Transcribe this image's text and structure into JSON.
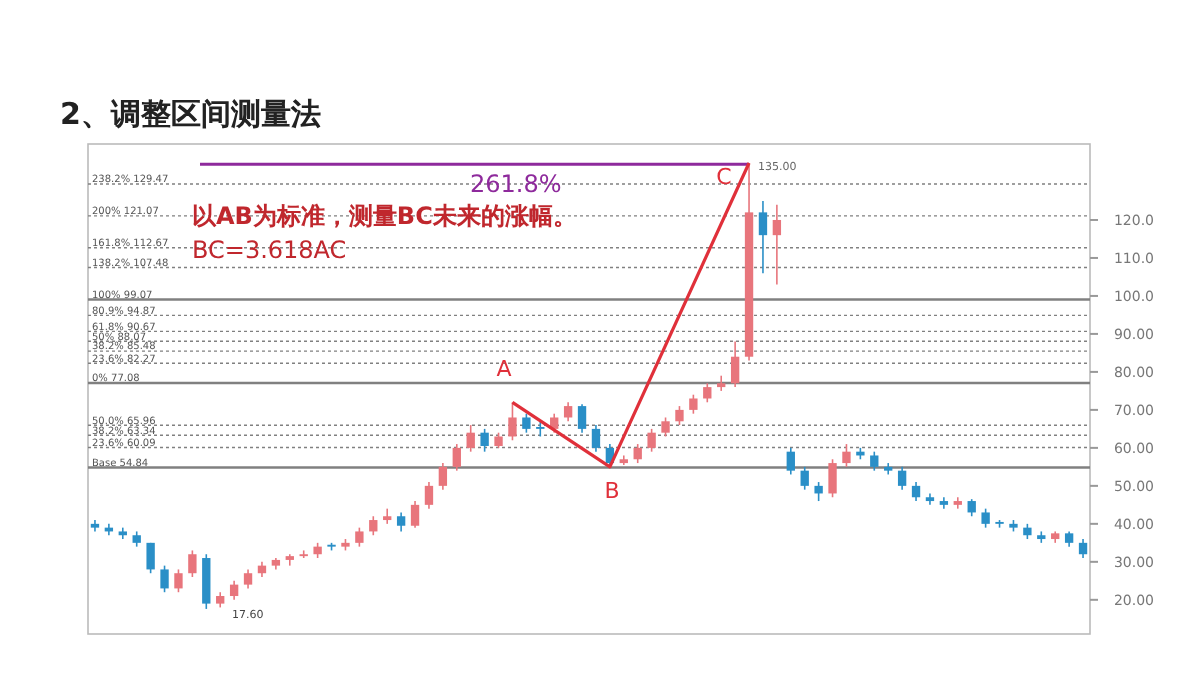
{
  "chart_data": {
    "type": "candlestick",
    "title": "2、调整区间测量法",
    "categories": [
      null,
      null,
      null,
      null,
      null,
      null,
      null,
      null,
      null,
      null,
      null,
      null,
      null,
      null,
      null,
      null,
      null,
      null,
      null,
      null,
      null,
      null,
      null,
      null,
      null,
      null,
      null,
      null,
      null,
      null,
      null,
      null,
      null,
      null,
      null,
      null,
      null,
      null,
      null,
      null,
      null,
      null,
      null,
      null,
      null,
      null,
      null,
      null,
      null,
      null,
      null,
      null,
      null,
      null,
      null,
      null,
      null,
      null,
      null,
      null,
      null,
      null,
      null,
      null,
      null,
      null,
      null,
      null,
      null,
      null,
      null,
      null
    ],
    "ohlc": [
      [
        40,
        41,
        38,
        39
      ],
      [
        39,
        40,
        37,
        38
      ],
      [
        38,
        39,
        36,
        37
      ],
      [
        37,
        38,
        34,
        35
      ],
      [
        35,
        35,
        27,
        28
      ],
      [
        28,
        29,
        22,
        23
      ],
      [
        23,
        28,
        22,
        27
      ],
      [
        27,
        33,
        26,
        32
      ],
      [
        31,
        32,
        17.6,
        19
      ],
      [
        19,
        22,
        18,
        21
      ],
      [
        21,
        25,
        20,
        24
      ],
      [
        24,
        28,
        23,
        27
      ],
      [
        27,
        30,
        26,
        29
      ],
      [
        29,
        31,
        28,
        30.5
      ],
      [
        30.5,
        32,
        29,
        31.5
      ],
      [
        31.5,
        33,
        31,
        32
      ],
      [
        32,
        35,
        31,
        34
      ],
      [
        34.5,
        35,
        33,
        34
      ],
      [
        34,
        36,
        33,
        35
      ],
      [
        35,
        39,
        34,
        38
      ],
      [
        38,
        42,
        37,
        41
      ],
      [
        41,
        44,
        40,
        42
      ],
      [
        42,
        43,
        38,
        39.5
      ],
      [
        39.5,
        46,
        39,
        45
      ],
      [
        45,
        51,
        44,
        50
      ],
      [
        50,
        56,
        49,
        55
      ],
      [
        55,
        61,
        54,
        60
      ],
      [
        60,
        66,
        59,
        64
      ],
      [
        64,
        65,
        59,
        60.5
      ],
      [
        60.5,
        64,
        60,
        63
      ],
      [
        63,
        72,
        62,
        68
      ],
      [
        68,
        69,
        64,
        65
      ],
      [
        65.5,
        67,
        63,
        65
      ],
      [
        65,
        69,
        64,
        68
      ],
      [
        68,
        72,
        67,
        71
      ],
      [
        71,
        71.5,
        64,
        65
      ],
      [
        65,
        66,
        59,
        60
      ],
      [
        60,
        61,
        55,
        56
      ],
      [
        56,
        58,
        55.5,
        57
      ],
      [
        57,
        61,
        56,
        60
      ],
      [
        60,
        65,
        59,
        64
      ],
      [
        64,
        68,
        63,
        67
      ],
      [
        67,
        71,
        66,
        70
      ],
      [
        70,
        74,
        69,
        73
      ],
      [
        73,
        77,
        72,
        76
      ],
      [
        76,
        79,
        75,
        77
      ],
      [
        77,
        88,
        76,
        84
      ],
      [
        84,
        135,
        83,
        122
      ],
      [
        122,
        125,
        106,
        116
      ],
      [
        116,
        124,
        103,
        120
      ],
      [
        59,
        60,
        53,
        54
      ],
      [
        54,
        55,
        49,
        50
      ],
      [
        50,
        51,
        46,
        48
      ],
      [
        48,
        57,
        47,
        56
      ],
      [
        56,
        61,
        55,
        59
      ],
      [
        59,
        60,
        57,
        58
      ],
      [
        58,
        59,
        54,
        55
      ],
      [
        55,
        56,
        53,
        54
      ],
      [
        54,
        55,
        49,
        50
      ],
      [
        50,
        51,
        46,
        47
      ],
      [
        47,
        48,
        45,
        46
      ],
      [
        46,
        47,
        44,
        45
      ],
      [
        45,
        47,
        44,
        46
      ],
      [
        46,
        46.5,
        42,
        43
      ],
      [
        43,
        44,
        39,
        40
      ],
      [
        40.5,
        41,
        39,
        40
      ],
      [
        40,
        41,
        38,
        39
      ],
      [
        39,
        40,
        36,
        37
      ],
      [
        37,
        38,
        35,
        36
      ],
      [
        36,
        38,
        35,
        37.5
      ],
      [
        37.5,
        38,
        34,
        35
      ],
      [
        35,
        36,
        31,
        32
      ]
    ],
    "series": [
      {
        "type": "line",
        "color": "#e0303a",
        "values": [
          null,
          null,
          null,
          null,
          null,
          null,
          null,
          null,
          null,
          null,
          null,
          null,
          null,
          null,
          null,
          null,
          null,
          null,
          null,
          null,
          null,
          null,
          null,
          null,
          null,
          null,
          null,
          null,
          null,
          null,
          72,
          null,
          null,
          null,
          null,
          null,
          null,
          55,
          null,
          null,
          null,
          null,
          null,
          null,
          null,
          null,
          null,
          135,
          null,
          null,
          null,
          null,
          null,
          null,
          null,
          null,
          null,
          null,
          null,
          null,
          null,
          null,
          null,
          null,
          null,
          null,
          null,
          null,
          null,
          null,
          null,
          null
        ]
      }
    ],
    "ylim": [
      11,
      140
    ],
    "yticks": [
      {
        "value": 20,
        "label": "20.00"
      },
      {
        "value": 30,
        "label": "30.00"
      },
      {
        "value": 40,
        "label": "40.00"
      },
      {
        "value": 50,
        "label": "50.00"
      },
      {
        "value": 60,
        "label": "60.00"
      },
      {
        "value": 70,
        "label": "70.00"
      },
      {
        "value": 80,
        "label": "80.00"
      },
      {
        "value": 90,
        "label": "90.00"
      },
      {
        "value": 100,
        "label": "100.0"
      },
      {
        "value": 110,
        "label": "110.0"
      },
      {
        "value": 120,
        "label": "120.0"
      }
    ],
    "ref_lines": [
      {
        "axis": "y",
        "value": 134.65,
        "color": "#8e2a9c",
        "line_style": "solid"
      },
      {
        "axis": "y",
        "value": 129.47,
        "label": "238.2% 129.47",
        "color": "#808080",
        "line_style": "dotted"
      },
      {
        "axis": "y",
        "value": 121.07,
        "label": "200% 121.07",
        "color": "#808080",
        "line_style": "dotted"
      },
      {
        "axis": "y",
        "value": 112.67,
        "label": "161.8% 112.67",
        "color": "#808080",
        "line_style": "dotted"
      },
      {
        "axis": "y",
        "value": 107.48,
        "label": "138.2% 107.48",
        "color": "#808080",
        "line_style": "dotted"
      },
      {
        "axis": "y",
        "value": 99.07,
        "label": "100% 99.07",
        "color": "#808080",
        "line_style": "solid"
      },
      {
        "axis": "y",
        "value": 94.87,
        "label": "80.9% 94.87",
        "color": "#808080",
        "line_style": "dotted"
      },
      {
        "axis": "y",
        "value": 90.67,
        "label": "61.8% 90.67",
        "color": "#808080",
        "line_style": "dotted"
      },
      {
        "axis": "y",
        "value": 88.07,
        "label": "50% 88.07",
        "color": "#808080",
        "line_style": "dotted"
      },
      {
        "axis": "y",
        "value": 85.48,
        "label": "38.2% 85.48",
        "color": "#808080",
        "line_style": "dotted"
      },
      {
        "axis": "y",
        "value": 82.27,
        "label": "23.6% 82.27",
        "color": "#808080",
        "line_style": "dotted"
      },
      {
        "axis": "y",
        "value": 77.08,
        "label": "0% 77.08",
        "color": "#808080",
        "line_style": "solid"
      },
      {
        "axis": "y",
        "value": 65.96,
        "label": "50.0% 65.96",
        "color": "#808080",
        "line_style": "dotted"
      },
      {
        "axis": "y",
        "value": 63.34,
        "label": "38.2% 63.34",
        "color": "#808080",
        "line_style": "dotted"
      },
      {
        "axis": "y",
        "value": 60.09,
        "label": "23.6% 60.09",
        "color": "#808080",
        "line_style": "dotted"
      },
      {
        "axis": "y",
        "value": 54.84,
        "label": "Base 54.84",
        "color": "#808080",
        "line_style": "solid"
      }
    ],
    "annotations": [
      "以AB为标准，测量BC未来的涨幅。",
      "BC=3.618AC",
      "A",
      "B",
      "C",
      "135.00",
      "17.60",
      "261.8%"
    ],
    "grid": false
  }
}
